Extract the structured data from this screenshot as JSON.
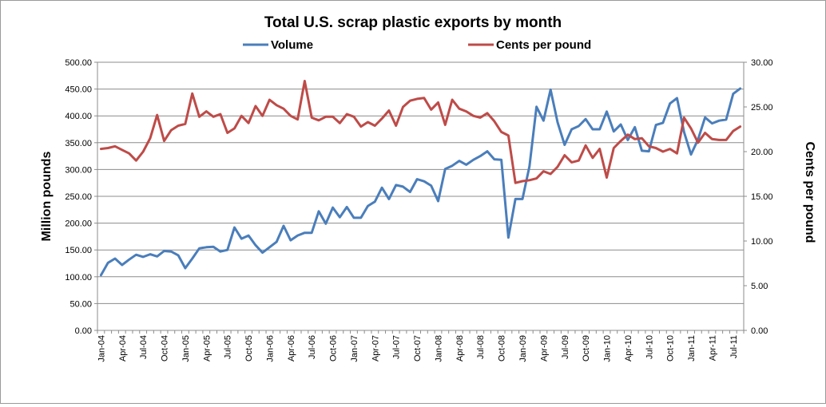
{
  "chart_data": {
    "type": "line",
    "title": "Total U.S. scrap plastic exports by month",
    "ylabel": "Million pounds",
    "y2label": "Cents per pound",
    "ylim": [
      0,
      500
    ],
    "y2lim": [
      0,
      30
    ],
    "yticks": [
      "0.00",
      "50.00",
      "100.00",
      "150.00",
      "200.00",
      "250.00",
      "300.00",
      "350.00",
      "400.00",
      "450.00",
      "500.00"
    ],
    "y2ticks": [
      "0.00",
      "5.00",
      "10.00",
      "15.00",
      "20.00",
      "25.00",
      "30.00"
    ],
    "xticks": [
      "Jan-04",
      "Apr-04",
      "Jul-04",
      "Oct-04",
      "Jan-05",
      "Apr-05",
      "Jul-05",
      "Oct-05",
      "Jan-06",
      "Apr-06",
      "Jul-06",
      "Oct-06",
      "Jan-07",
      "Apr-07",
      "Jul-07",
      "Oct-07",
      "Jan-08",
      "Apr-08",
      "Jul-08",
      "Oct-08",
      "Jan-09",
      "Apr-09",
      "Jul-09",
      "Oct-09",
      "Jan-10",
      "Apr-10",
      "Jul-10",
      "Oct-10",
      "Jan-11",
      "Apr-11",
      "Jul-11"
    ],
    "legend_position": "top",
    "grid": true,
    "series": [
      {
        "name": "Volume",
        "axis": "left",
        "color": "#4a7ebb",
        "values": [
          103,
          126,
          134,
          122,
          132,
          141,
          137,
          142,
          138,
          148,
          147,
          140,
          116,
          134,
          153,
          155,
          156,
          147,
          150,
          192,
          171,
          177,
          159,
          145,
          155,
          165,
          195,
          168,
          177,
          182,
          182,
          222,
          199,
          229,
          211,
          230,
          210,
          210,
          232,
          240,
          266,
          245,
          271,
          268,
          258,
          282,
          278,
          270,
          241,
          301,
          307,
          316,
          309,
          318,
          325,
          334,
          319,
          318,
          173,
          245,
          245,
          306,
          417,
          391,
          449,
          388,
          346,
          375,
          381,
          394,
          375,
          375,
          408,
          371,
          384,
          355,
          379,
          335,
          334,
          383,
          387,
          423,
          433,
          370,
          328,
          356,
          397,
          386,
          391,
          393,
          441,
          451
        ]
      },
      {
        "name": "Cents per pound",
        "axis": "right",
        "color": "#be4b48",
        "values": [
          20.3,
          20.4,
          20.6,
          20.2,
          19.8,
          19.0,
          20.0,
          21.5,
          24.1,
          21.2,
          22.4,
          22.9,
          23.1,
          26.5,
          23.9,
          24.5,
          23.9,
          24.2,
          22.1,
          22.6,
          24.0,
          23.2,
          25.1,
          24.0,
          25.8,
          25.2,
          24.8,
          24.0,
          23.6,
          27.9,
          23.8,
          23.5,
          23.9,
          23.9,
          23.2,
          24.2,
          23.9,
          22.8,
          23.3,
          22.9,
          23.7,
          24.6,
          22.9,
          25.0,
          25.7,
          25.9,
          26.0,
          24.7,
          25.5,
          23.0,
          25.8,
          24.8,
          24.5,
          24.0,
          23.8,
          24.3,
          23.4,
          22.2,
          21.8,
          16.5,
          16.7,
          16.8,
          17.0,
          17.8,
          17.5,
          18.3,
          19.6,
          18.8,
          19.0,
          20.7,
          19.3,
          20.3,
          17.1,
          20.4,
          21.2,
          21.9,
          21.4,
          21.5,
          20.6,
          20.4,
          20.0,
          20.3,
          19.8,
          23.8,
          22.6,
          21.0,
          22.1,
          21.4,
          21.3,
          21.3,
          22.3,
          22.8
        ]
      }
    ]
  }
}
